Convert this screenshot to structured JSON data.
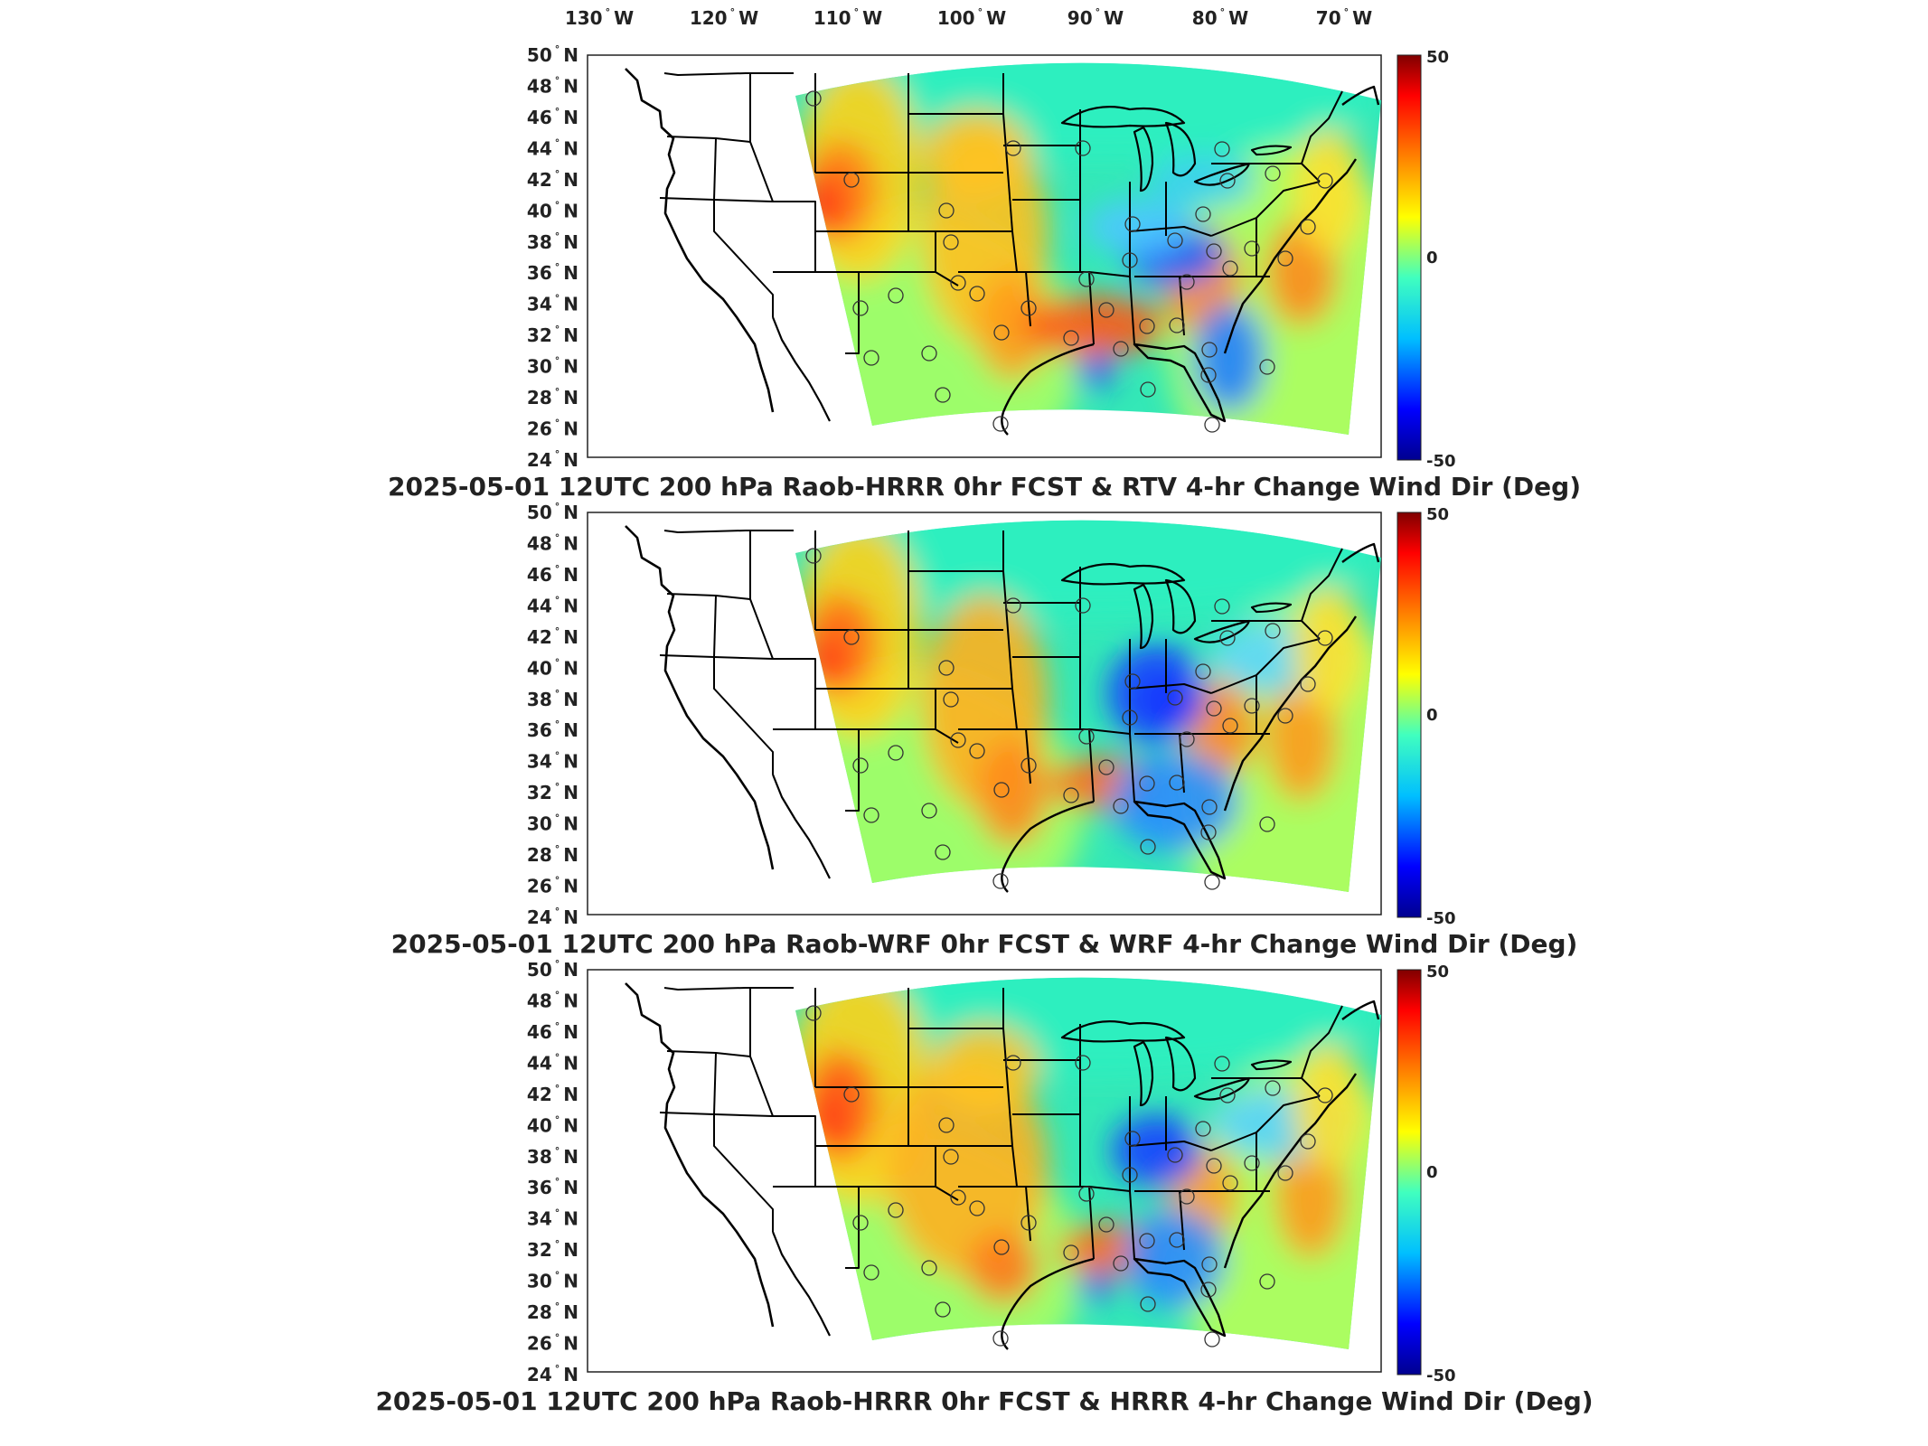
{
  "figure": {
    "longitude_labels": [
      "130",
      "120",
      "110",
      "100",
      "90",
      "80",
      "70"
    ],
    "longitude_suffix": "W",
    "latitude_labels": [
      "50",
      "48",
      "46",
      "44",
      "42",
      "40",
      "38",
      "36",
      "34",
      "32",
      "30",
      "28",
      "26",
      "24"
    ],
    "latitude_suffix": "N",
    "colorbar": {
      "max_label": "50",
      "mid_label": "0",
      "min_label": "-50",
      "colors": [
        "#00008f",
        "#0000ff",
        "#00bfff",
        "#40ffbf",
        "#ffff00",
        "#ff8000",
        "#ff0000",
        "#800000"
      ]
    },
    "panels": [
      {
        "title": "2025-05-01 12UTC 200 hPa Raob-HRRR 0hr FCST & RTV 4-hr Change Wind Dir (Deg)"
      },
      {
        "title": "2025-05-01 12UTC 200 hPa Raob-WRF 0hr FCST & WRF 4-hr Change Wind Dir (Deg)"
      },
      {
        "title": "2025-05-01 12UTC 200 hPa Raob-HRRR 0hr FCST & HRRR 4-hr Change Wind Dir (Deg)"
      }
    ]
  }
}
